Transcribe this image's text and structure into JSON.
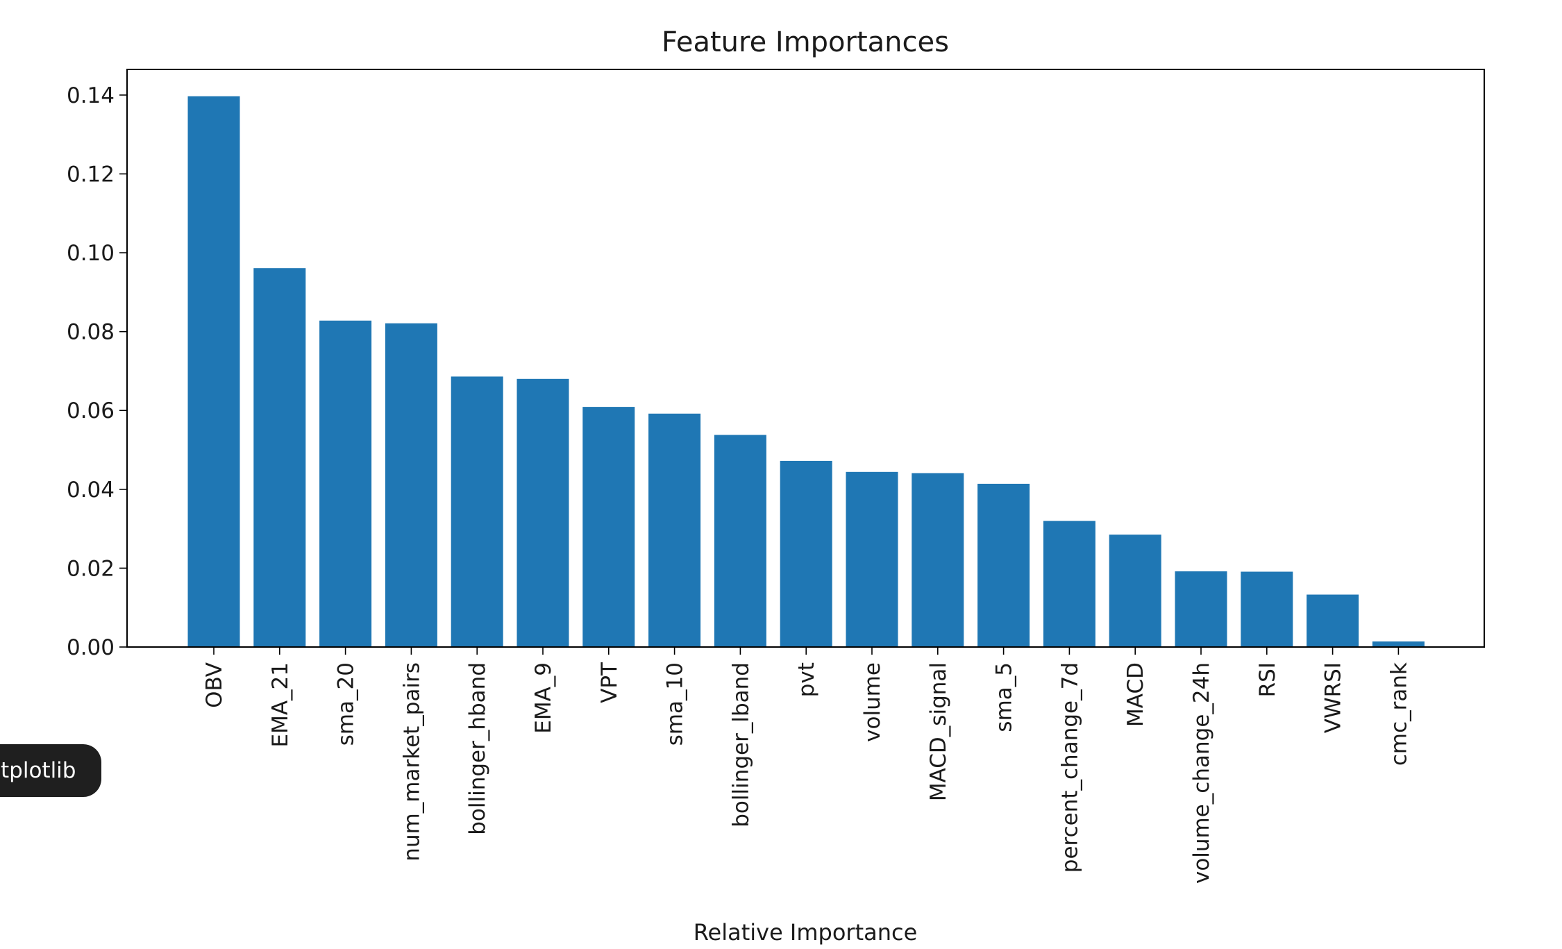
{
  "tooltip": {
    "text": "tplotlib"
  },
  "colors": {
    "bar": "#1f77b4",
    "axis": "#000000",
    "text": "#1a1a1a",
    "tooltip_bg": "#1f1f1f",
    "tooltip_text": "#ffffff"
  },
  "chart_data": {
    "type": "bar",
    "title": "Feature Importances",
    "xlabel": "Relative Importance",
    "ylabel": "",
    "ylim": [
      0,
      0.1465
    ],
    "yticks": [
      0.0,
      0.02,
      0.04,
      0.06,
      0.08,
      0.1,
      0.12,
      0.14
    ],
    "ytick_labels": [
      "0.00",
      "0.02",
      "0.04",
      "0.06",
      "0.08",
      "0.10",
      "0.12",
      "0.14"
    ],
    "grid": false,
    "legend": "none",
    "categories": [
      "OBV",
      "EMA_21",
      "sma_20",
      "num_market_pairs",
      "bollinger_hband",
      "EMA_9",
      "VPT",
      "sma_10",
      "bollinger_lband",
      "pvt",
      "volume",
      "MACD_signal",
      "sma_5",
      "percent_change_7d",
      "MACD",
      "volume_change_24h",
      "RSI",
      "VWRSI",
      "cmc_rank"
    ],
    "values": [
      0.1397,
      0.0961,
      0.0828,
      0.0821,
      0.0686,
      0.068,
      0.0609,
      0.0592,
      0.0538,
      0.0472,
      0.0444,
      0.0441,
      0.0414,
      0.032,
      0.0285,
      0.0192,
      0.0191,
      0.0133,
      0.0014
    ]
  }
}
